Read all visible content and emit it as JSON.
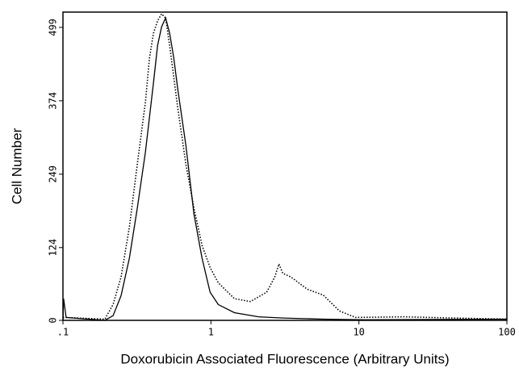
{
  "chart_data": {
    "type": "line",
    "xlabel": "Doxorubicin Associated Fluorescence (Arbitrary Units)",
    "ylabel": "Cell Number",
    "xscale": "log",
    "xlim": [
      0.1,
      100
    ],
    "xticks": [
      {
        "value": 0.1,
        "label": ".1"
      },
      1,
      10,
      100
    ],
    "ylim": [
      0,
      525
    ],
    "yticks": [
      0,
      124,
      249,
      374,
      499
    ],
    "grid": false,
    "series": [
      {
        "color": "#000000",
        "linestyle": "solid",
        "x": [
          0.1,
          0.101,
          0.105,
          0.192,
          0.218,
          0.247,
          0.281,
          0.318,
          0.361,
          0.409,
          0.436,
          0.464,
          0.494,
          0.526,
          0.561,
          0.597,
          0.677,
          0.768,
          0.871,
          0.987,
          1.12,
          1.44,
          2.1,
          3.06,
          5.74,
          10.8,
          100
        ],
        "values": [
          0,
          37,
          5,
          0,
          8,
          42,
          106,
          191,
          287,
          404,
          468,
          500,
          515,
          489,
          447,
          393,
          298,
          181,
          106,
          48,
          27,
          13,
          6,
          4,
          2,
          1,
          2
        ]
      },
      {
        "color": "#000000",
        "linestyle": "dotted",
        "x": [
          0.1,
          0.192,
          0.218,
          0.247,
          0.281,
          0.318,
          0.361,
          0.384,
          0.409,
          0.436,
          0.464,
          0.494,
          0.526,
          0.597,
          0.677,
          0.768,
          0.871,
          0.987,
          1.12,
          1.44,
          1.85,
          2.38,
          2.7,
          2.88,
          3.06,
          3.47,
          4.47,
          5.74,
          7.39,
          9.5,
          20.2,
          43.1,
          100
        ],
        "values": [
          5,
          2,
          27,
          74,
          159,
          266,
          372,
          446,
          489,
          510,
          522,
          515,
          468,
          361,
          266,
          191,
          128,
          90,
          64,
          37,
          32,
          48,
          74,
          96,
          80,
          74,
          53,
          43,
          16,
          5,
          6,
          4,
          2
        ]
      }
    ]
  }
}
